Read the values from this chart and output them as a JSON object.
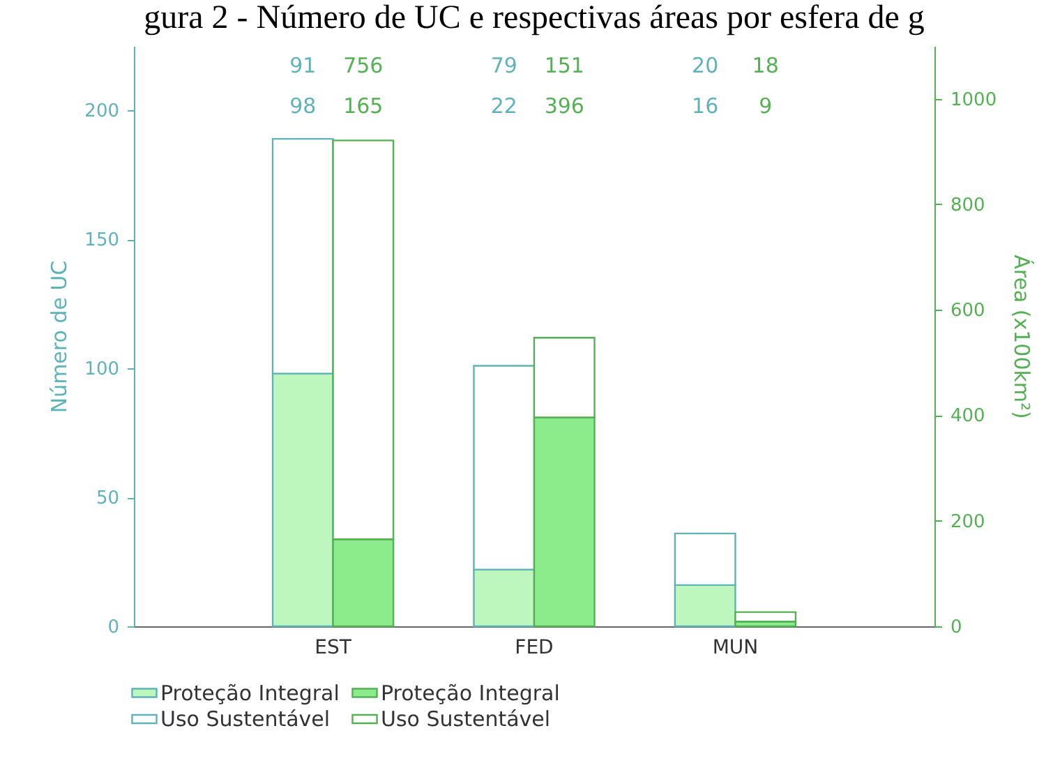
{
  "chart_data": {
    "type": "bar",
    "title": "gura 2 - Número de UC e respectivas áreas por esfera de g",
    "categories": [
      "EST",
      "FED",
      "MUN"
    ],
    "stacked": true,
    "annotations": [
      "91",
      "756",
      "79",
      "151",
      "20",
      "18",
      "98",
      "165",
      "22",
      "396",
      "16",
      "9"
    ],
    "legend": "bottom",
    "ylabel": "Número de UC",
    "y2label": "Área (x100km²)",
    "ylim": [
      0,
      225
    ],
    "yticks": [
      0,
      50,
      100,
      150,
      200
    ],
    "y2lim": [
      0,
      1100
    ],
    "y2ticks": [
      0,
      200,
      400,
      600,
      800,
      1000
    ],
    "series": [
      {
        "name": "Proteção Integral",
        "color": "#bdf7bd",
        "axis": "y",
        "values": [
          98,
          22,
          16
        ]
      },
      {
        "name": "Uso Sustentável",
        "color": "#ffffff",
        "axis": "y",
        "values": [
          91,
          79,
          20
        ]
      },
      {
        "name": "Proteção Integral",
        "color": "#8cec8c",
        "axis": "y2",
        "values": [
          165,
          396,
          9
        ]
      },
      {
        "name": "Uso Sustentável",
        "color": "#ffffff",
        "axis": "y2",
        "values": [
          756,
          151,
          18
        ]
      }
    ]
  }
}
